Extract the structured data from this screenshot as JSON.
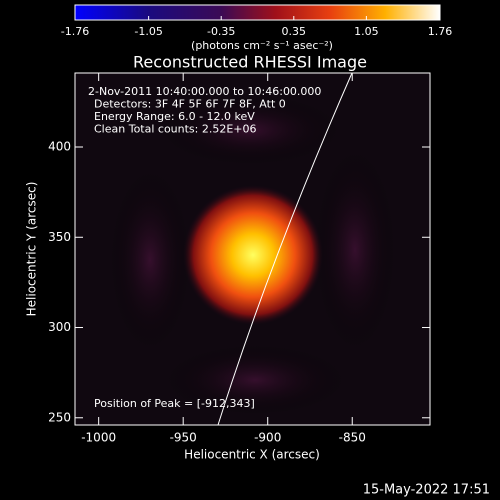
{
  "chart_data": {
    "type": "image",
    "title": "Reconstructed RHESSI Image",
    "xlabel": "Heliocentric X (arcsec)",
    "ylabel": "Heliocentric Y (arcsec)",
    "xlim": [
      -1014,
      -804
    ],
    "xticks": [
      -1000,
      -950,
      -900,
      -850
    ],
    "ylim": [
      246,
      441
    ],
    "yticks": [
      250,
      300,
      350,
      400
    ],
    "colorbar": {
      "label": "(photons cm⁻² s⁻¹ asec⁻²)",
      "lim": [
        -1.76,
        1.76
      ],
      "ticks": [
        -1.76,
        -1.05,
        -0.35,
        0.35,
        1.05,
        1.76
      ]
    },
    "annotations": [
      "2-Nov-2011 10:40:00.000 to 10:46:00.000",
      "Detectors: 3F 4F 5F 6F 7F 8F, Att 0",
      "Energy Range: 6.0 - 12.0 keV",
      "Clean    Total counts: 2.52E+06",
      "Position of Peak = [-912,343]"
    ],
    "footer": "15-May-2022 17:51"
  }
}
